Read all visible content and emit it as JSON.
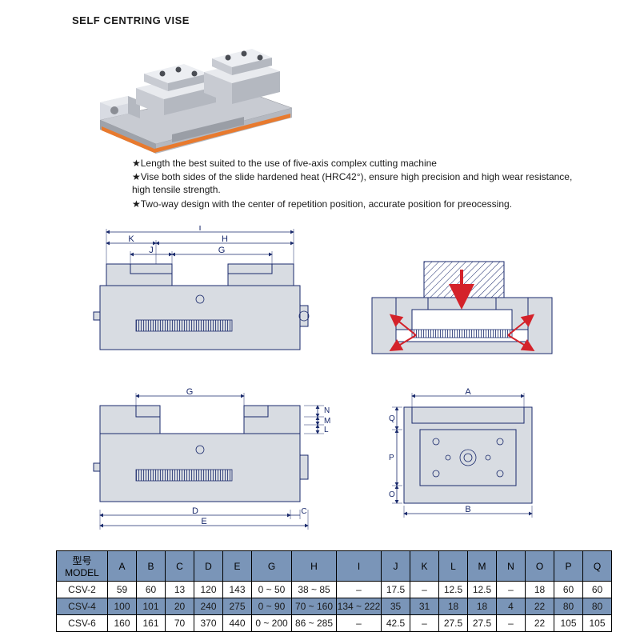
{
  "title": "SELF CENTRING VISE",
  "features": {
    "line1": "★Length the best suited to the use of five-axis complex cutting machine",
    "line2": "★Vise both sides of the slide hardened heat (HRC42°), ensure high precision and high wear resistance, high tensile strength.",
    "line3": "★Two-way design with the center of repetition position, accurate position for preocessing."
  },
  "product_render": {
    "body_color": "#c8cbd2",
    "body_highlight": "#e8eaee",
    "accent_color": "#e87a2e",
    "shadow_color": "#8a8d94"
  },
  "diagrams": {
    "fill": "#d8dce2",
    "stroke": "#1a2a6c",
    "hatch": "#1a2a6c",
    "arrow": "#d4222a",
    "labels": [
      "I",
      "K",
      "H",
      "J",
      "G",
      "D",
      "E",
      "C",
      "L",
      "M",
      "N",
      "A",
      "B",
      "O",
      "P",
      "Q"
    ]
  },
  "table": {
    "headers": [
      "型号 MODEL",
      "A",
      "B",
      "C",
      "D",
      "E",
      "G",
      "H",
      "I",
      "J",
      "K",
      "L",
      "M",
      "N",
      "O",
      "P",
      "Q"
    ],
    "rows": [
      {
        "model": "CSV-2",
        "A": "59",
        "B": "60",
        "C": "13",
        "D": "120",
        "E": "143",
        "G": "0 ~ 50",
        "H": "38 ~ 85",
        "I": "–",
        "J": "17.5",
        "K": "–",
        "L": "12.5",
        "M": "12.5",
        "N": "–",
        "O": "18",
        "P": "60",
        "Q": "60",
        "hl": false
      },
      {
        "model": "CSV-4",
        "A": "100",
        "B": "101",
        "C": "20",
        "D": "240",
        "E": "275",
        "G": "0 ~ 90",
        "H": "70 ~ 160",
        "I": "134 ~ 222",
        "J": "35",
        "K": "31",
        "L": "18",
        "M": "18",
        "N": "4",
        "O": "22",
        "P": "80",
        "Q": "80",
        "hl": true
      },
      {
        "model": "CSV-6",
        "A": "160",
        "B": "161",
        "C": "70",
        "D": "370",
        "E": "440",
        "G": "0 ~ 200",
        "H": "86 ~ 285",
        "I": "–",
        "J": "42.5",
        "K": "–",
        "L": "27.5",
        "M": "27.5",
        "N": "–",
        "O": "22",
        "P": "105",
        "Q": "105",
        "hl": false
      }
    ],
    "header_bg": "#7a95b8",
    "highlight_bg": "#7a95b8"
  }
}
